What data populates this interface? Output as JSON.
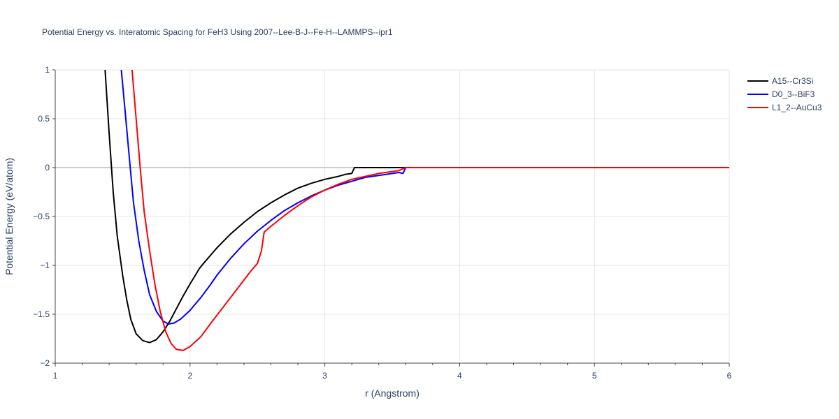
{
  "chart_data": {
    "type": "line",
    "title": "Potential Energy vs. Interatomic Spacing for FeH3 Using 2007--Lee-B-J--Fe-H--LAMMPS--ipr1",
    "xlabel": "r (Angstrom)",
    "ylabel": "Potential Energy (eV/atom)",
    "xlim": [
      1,
      6
    ],
    "ylim": [
      -2,
      1
    ],
    "x_ticks": [
      "1",
      "2",
      "3",
      "4",
      "5",
      "6"
    ],
    "y_ticks": [
      "1",
      "0.5",
      "0",
      "−0.5",
      "−1",
      "−1.5",
      "−2"
    ],
    "grid": true,
    "legend_position": "top-right",
    "series": [
      {
        "name": "A15--Cr3Si",
        "color": "#000000",
        "points": [
          [
            1.37,
            1.0
          ],
          [
            1.4,
            0.35
          ],
          [
            1.43,
            -0.25
          ],
          [
            1.46,
            -0.7
          ],
          [
            1.5,
            -1.1
          ],
          [
            1.53,
            -1.35
          ],
          [
            1.56,
            -1.55
          ],
          [
            1.6,
            -1.7
          ],
          [
            1.65,
            -1.77
          ],
          [
            1.7,
            -1.79
          ],
          [
            1.75,
            -1.76
          ],
          [
            1.8,
            -1.68
          ],
          [
            1.85,
            -1.57
          ],
          [
            1.9,
            -1.44
          ],
          [
            1.95,
            -1.31
          ],
          [
            2.0,
            -1.19
          ],
          [
            2.04,
            -1.1
          ],
          [
            2.07,
            -1.03
          ],
          [
            2.1,
            -0.98
          ],
          [
            2.15,
            -0.9
          ],
          [
            2.2,
            -0.82
          ],
          [
            2.3,
            -0.68
          ],
          [
            2.4,
            -0.56
          ],
          [
            2.5,
            -0.45
          ],
          [
            2.6,
            -0.36
          ],
          [
            2.7,
            -0.28
          ],
          [
            2.8,
            -0.21
          ],
          [
            2.9,
            -0.16
          ],
          [
            3.0,
            -0.12
          ],
          [
            3.1,
            -0.09
          ],
          [
            3.15,
            -0.07
          ],
          [
            3.2,
            -0.06
          ],
          [
            3.22,
            0.0
          ],
          [
            3.6,
            0.0
          ],
          [
            6.0,
            0.0
          ]
        ]
      },
      {
        "name": "D0_3--BiF3",
        "color": "#0000ff",
        "points": [
          [
            1.49,
            1.0
          ],
          [
            1.52,
            0.55
          ],
          [
            1.55,
            0.1
          ],
          [
            1.58,
            -0.35
          ],
          [
            1.62,
            -0.75
          ],
          [
            1.66,
            -1.05
          ],
          [
            1.7,
            -1.3
          ],
          [
            1.75,
            -1.47
          ],
          [
            1.8,
            -1.57
          ],
          [
            1.84,
            -1.6
          ],
          [
            1.88,
            -1.59
          ],
          [
            1.93,
            -1.55
          ],
          [
            2.0,
            -1.46
          ],
          [
            2.08,
            -1.33
          ],
          [
            2.15,
            -1.2
          ],
          [
            2.2,
            -1.1
          ],
          [
            2.3,
            -0.93
          ],
          [
            2.4,
            -0.78
          ],
          [
            2.5,
            -0.65
          ],
          [
            2.6,
            -0.54
          ],
          [
            2.7,
            -0.44
          ],
          [
            2.8,
            -0.36
          ],
          [
            2.9,
            -0.29
          ],
          [
            3.0,
            -0.23
          ],
          [
            3.1,
            -0.18
          ],
          [
            3.2,
            -0.14
          ],
          [
            3.3,
            -0.1
          ],
          [
            3.4,
            -0.08
          ],
          [
            3.5,
            -0.06
          ],
          [
            3.55,
            -0.05
          ],
          [
            3.58,
            -0.06
          ],
          [
            3.6,
            0.0
          ],
          [
            6.0,
            0.0
          ]
        ]
      },
      {
        "name": "L1_2--AuCu3",
        "color": "#ff0000",
        "points": [
          [
            1.57,
            1.0
          ],
          [
            1.6,
            0.5
          ],
          [
            1.63,
            0.0
          ],
          [
            1.66,
            -0.45
          ],
          [
            1.7,
            -0.85
          ],
          [
            1.74,
            -1.2
          ],
          [
            1.78,
            -1.48
          ],
          [
            1.82,
            -1.68
          ],
          [
            1.86,
            -1.8
          ],
          [
            1.9,
            -1.86
          ],
          [
            1.95,
            -1.87
          ],
          [
            2.0,
            -1.83
          ],
          [
            2.08,
            -1.73
          ],
          [
            2.15,
            -1.6
          ],
          [
            2.25,
            -1.42
          ],
          [
            2.35,
            -1.24
          ],
          [
            2.45,
            -1.06
          ],
          [
            2.5,
            -0.98
          ],
          [
            2.53,
            -0.85
          ],
          [
            2.55,
            -0.66
          ],
          [
            2.6,
            -0.6
          ],
          [
            2.7,
            -0.49
          ],
          [
            2.8,
            -0.39
          ],
          [
            2.9,
            -0.3
          ],
          [
            3.0,
            -0.23
          ],
          [
            3.1,
            -0.17
          ],
          [
            3.2,
            -0.12
          ],
          [
            3.3,
            -0.09
          ],
          [
            3.4,
            -0.06
          ],
          [
            3.5,
            -0.04
          ],
          [
            3.55,
            -0.03
          ],
          [
            3.6,
            0.0
          ],
          [
            6.0,
            0.0
          ]
        ]
      }
    ]
  }
}
